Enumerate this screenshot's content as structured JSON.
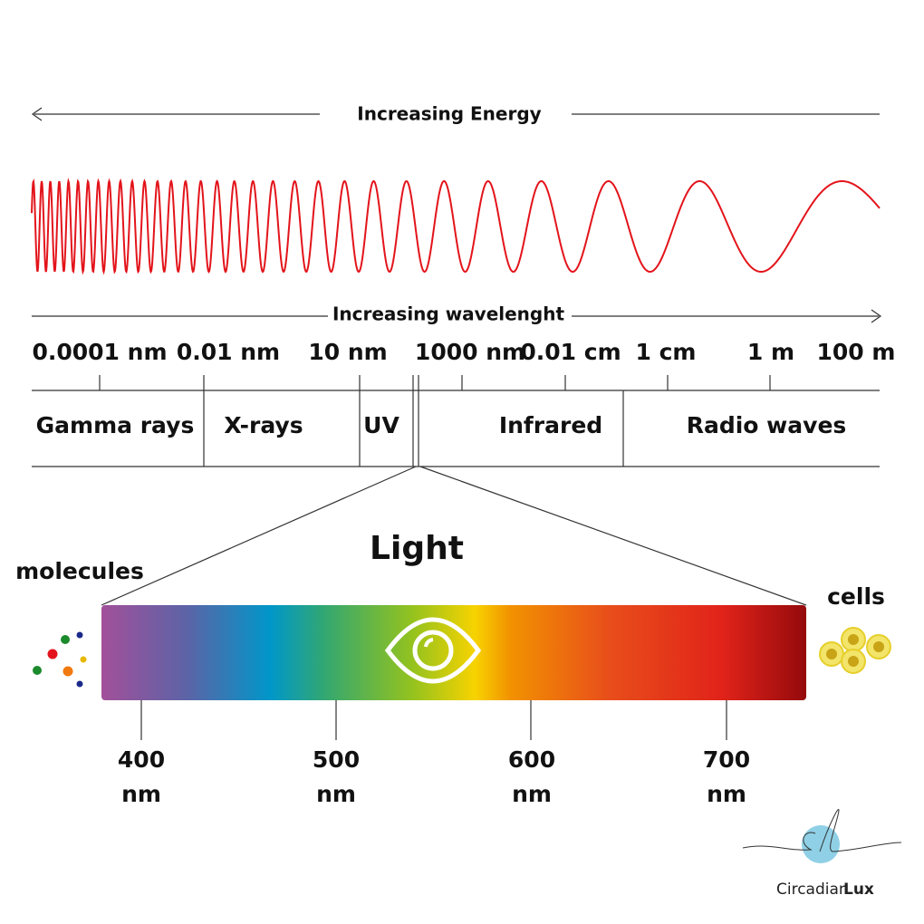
{
  "header": {
    "energy": "Increasing Energy",
    "wavelength": "Increasing wavelenght"
  },
  "scale": [
    "0.0001 nm",
    "0.01 nm",
    "10 nm",
    "1000 nm",
    "0.01 cm",
    "1 cm",
    "1 m",
    "100 m"
  ],
  "bands": [
    "Gamma rays",
    "X-rays",
    "UV",
    "Infrared",
    "Radio waves"
  ],
  "light": {
    "title": "Light",
    "left": "molecules",
    "right": "cells",
    "scale": [
      {
        "number": "400",
        "unit": "nm"
      },
      {
        "number": "500",
        "unit": "nm"
      },
      {
        "number": "600",
        "unit": "nm"
      },
      {
        "number": "700",
        "unit": "nm"
      }
    ]
  },
  "logo": {
    "first": "Circadian",
    "second": "Lux"
  }
}
